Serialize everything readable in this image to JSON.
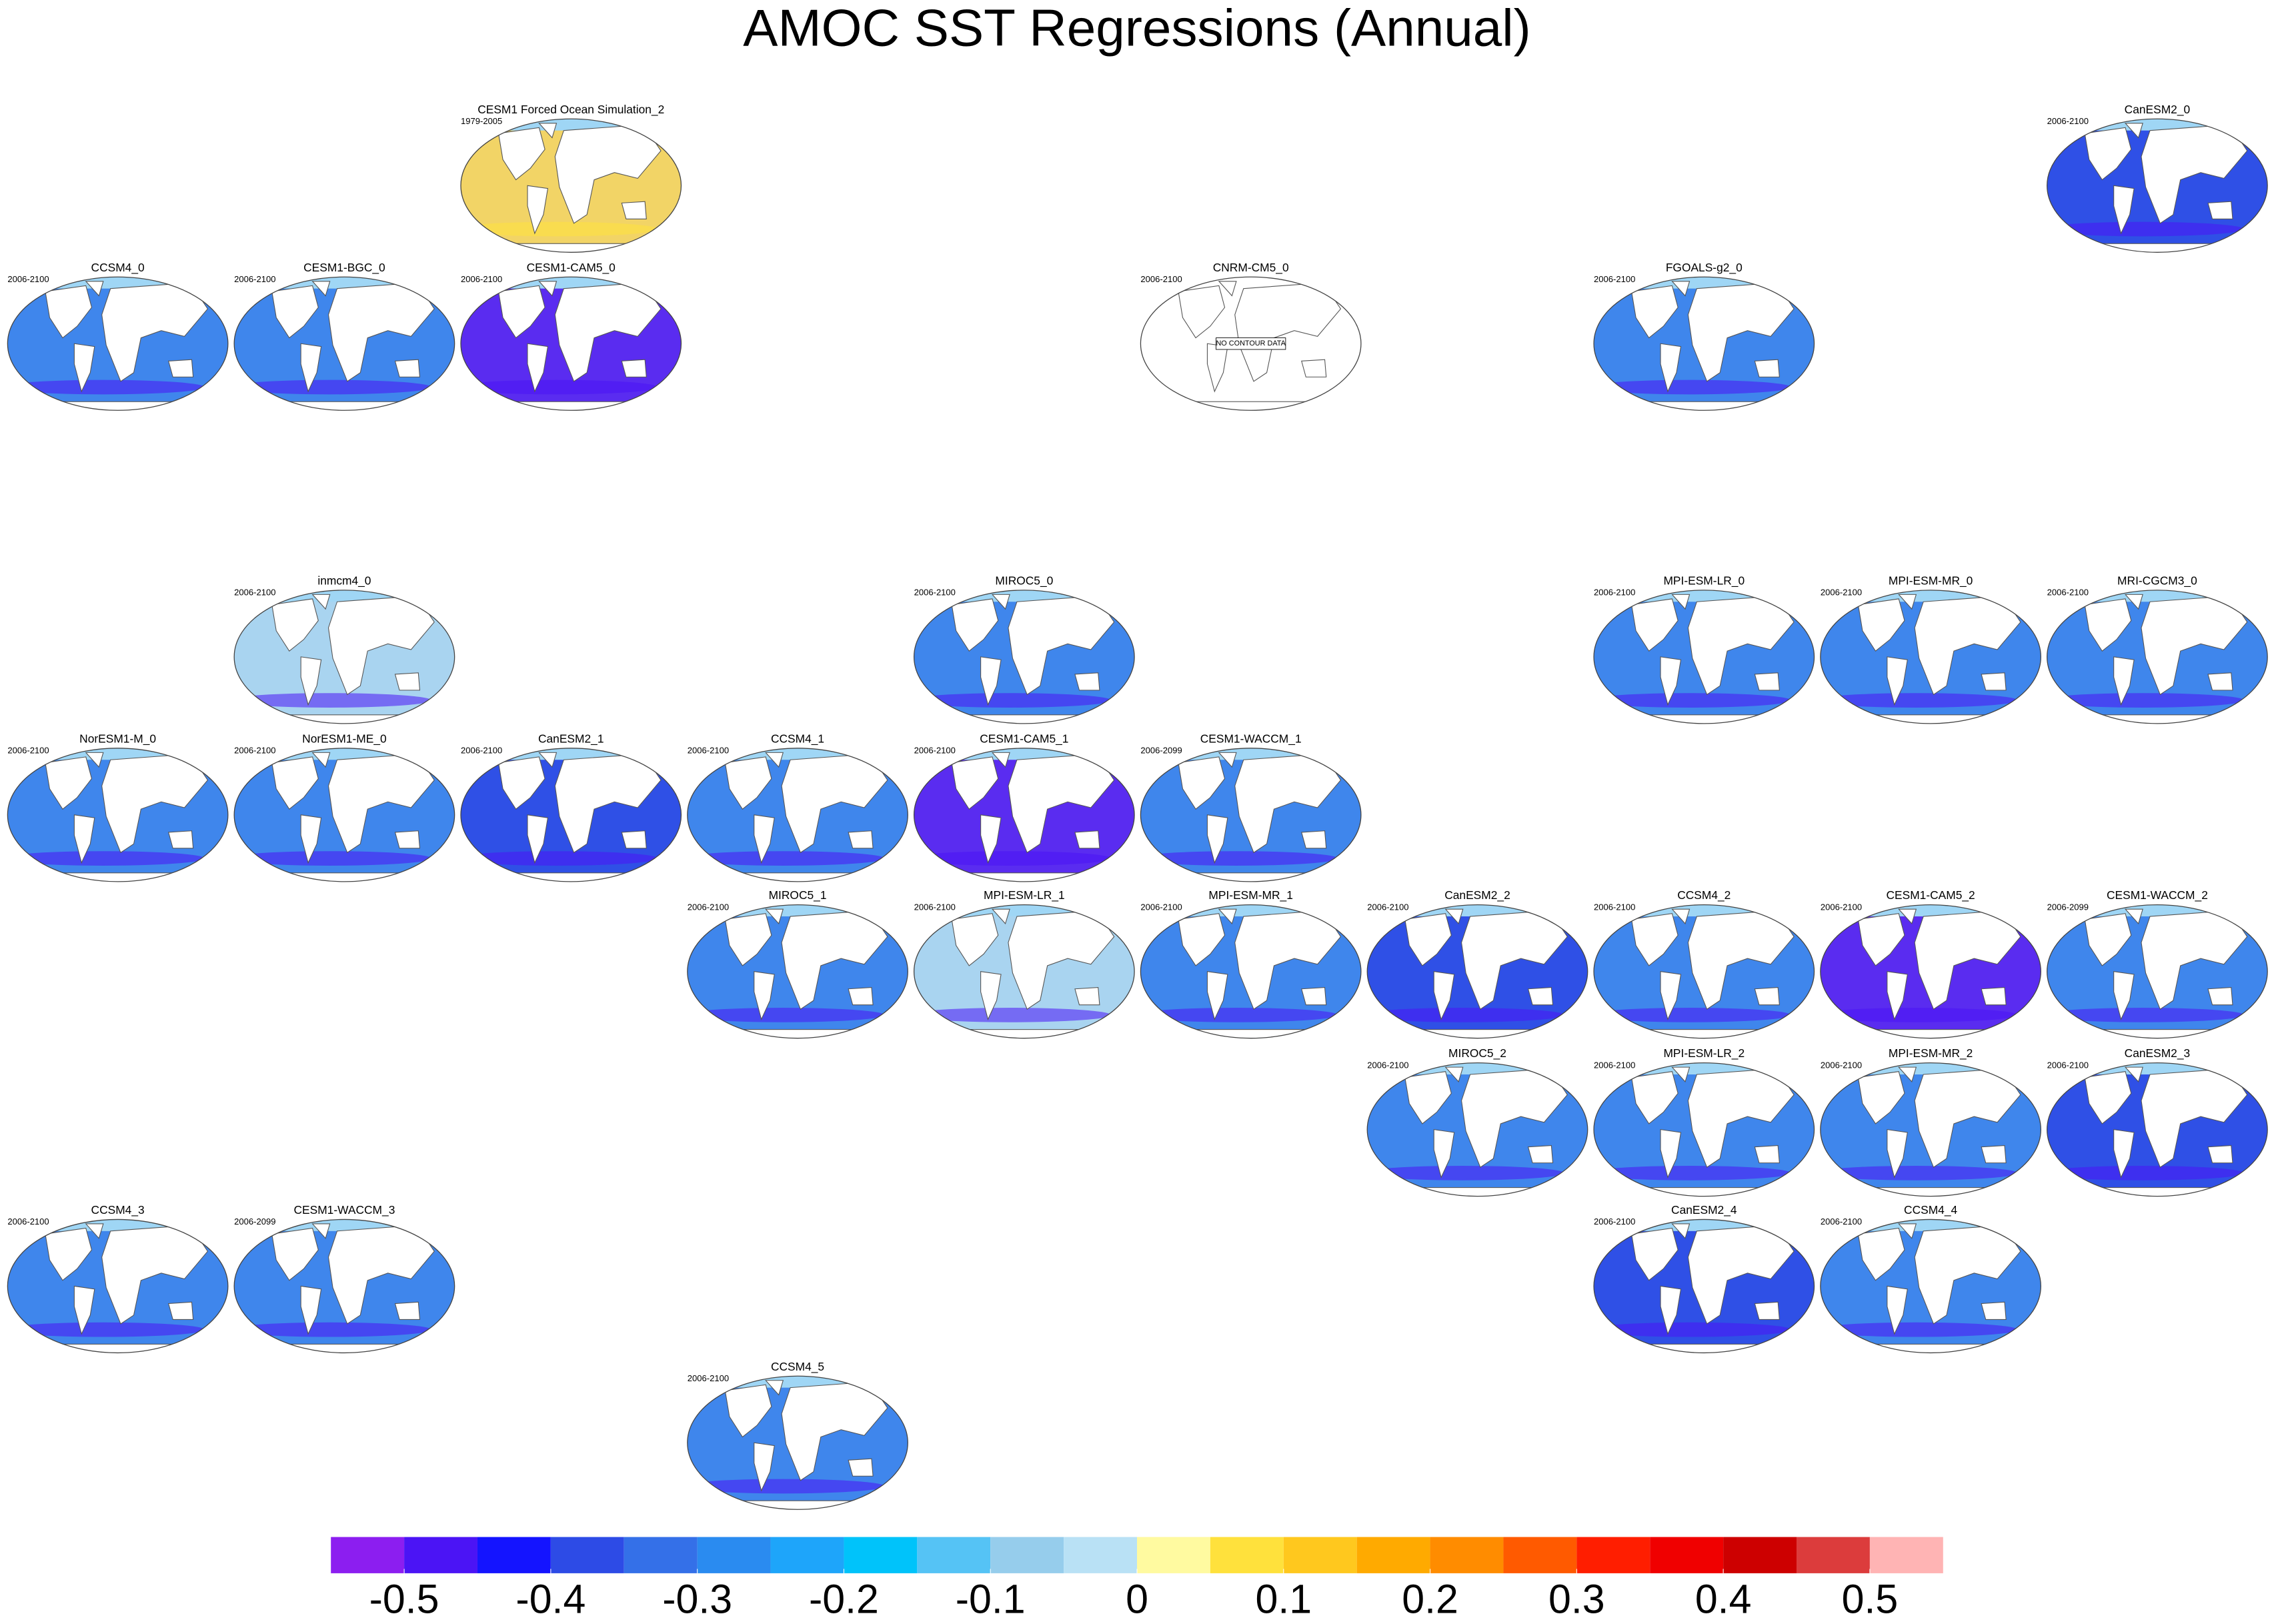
{
  "chart_data": {
    "type": "map-panels",
    "title": "AMOC SST Regressions (Annual)",
    "panels": [
      {
        "name": "CESM1 Forced Ocean Simulation_2",
        "period": "1979-2005"
      },
      {
        "name": "CanESM2_0",
        "period": "2006-2100"
      },
      {
        "name": "CCSM4_0",
        "period": "2006-2100"
      },
      {
        "name": "CESM1-BGC_0",
        "period": "2006-2100"
      },
      {
        "name": "CESM1-CAM5_0",
        "period": "2006-2100"
      },
      {
        "name": "CNRM-CM5_0",
        "period": "2006-2100",
        "note": "NO CONTOUR DATA"
      },
      {
        "name": "FGOALS-g2_0",
        "period": "2006-2100"
      },
      {
        "name": "inmcm4_0",
        "period": "2006-2100"
      },
      {
        "name": "MIROC5_0",
        "period": "2006-2100"
      },
      {
        "name": "MPI-ESM-LR_0",
        "period": "2006-2100"
      },
      {
        "name": "MPI-ESM-MR_0",
        "period": "2006-2100"
      },
      {
        "name": "MRI-CGCM3_0",
        "period": "2006-2100"
      },
      {
        "name": "NorESM1-M_0",
        "period": "2006-2100"
      },
      {
        "name": "NorESM1-ME_0",
        "period": "2006-2100"
      },
      {
        "name": "CanESM2_1",
        "period": "2006-2100"
      },
      {
        "name": "CCSM4_1",
        "period": "2006-2100"
      },
      {
        "name": "CESM1-CAM5_1",
        "period": "2006-2100"
      },
      {
        "name": "CESM1-WACCM_1",
        "period": "2006-2099"
      },
      {
        "name": "MIROC5_1",
        "period": "2006-2100"
      },
      {
        "name": "MPI-ESM-LR_1",
        "period": "2006-2100"
      },
      {
        "name": "MPI-ESM-MR_1",
        "period": "2006-2100"
      },
      {
        "name": "CanESM2_2",
        "period": "2006-2100"
      },
      {
        "name": "CCSM4_2",
        "period": "2006-2100"
      },
      {
        "name": "CESM1-CAM5_2",
        "period": "2006-2100"
      },
      {
        "name": "CESM1-WACCM_2",
        "period": "2006-2099"
      },
      {
        "name": "MIROC5_2",
        "period": "2006-2100"
      },
      {
        "name": "MPI-ESM-LR_2",
        "period": "2006-2100"
      },
      {
        "name": "MPI-ESM-MR_2",
        "period": "2006-2100"
      },
      {
        "name": "CanESM2_3",
        "period": "2006-2100"
      },
      {
        "name": "CCSM4_3",
        "period": "2006-2100"
      },
      {
        "name": "CESM1-WACCM_3",
        "period": "2006-2099"
      },
      {
        "name": "CanESM2_4",
        "period": "2006-2100"
      },
      {
        "name": "CCSM4_4",
        "period": "2006-2100"
      },
      {
        "name": "CCSM4_5",
        "period": "2006-2100"
      }
    ],
    "colorbar": {
      "xlim": [
        -0.55,
        0.55
      ],
      "xticks": [
        -0.5,
        -0.4,
        -0.3,
        -0.2,
        -0.1,
        0,
        0.1,
        0.2,
        0.3,
        0.4,
        0.5
      ],
      "colors": [
        "#8c1ef0",
        "#4b14f5",
        "#1414ff",
        "#2d4be6",
        "#3470e8",
        "#2a8bf0",
        "#1ea5fa",
        "#00c3fa",
        "#55c3f5",
        "#96cdec",
        "#b9e1f5",
        "#fffaa0",
        "#ffe13c",
        "#ffc81e",
        "#ffaa00",
        "#ff8c00",
        "#ff5a00",
        "#ff1e00",
        "#f00000",
        "#cd0000",
        "#dc3c3c",
        "#ffb4b4"
      ]
    }
  }
}
